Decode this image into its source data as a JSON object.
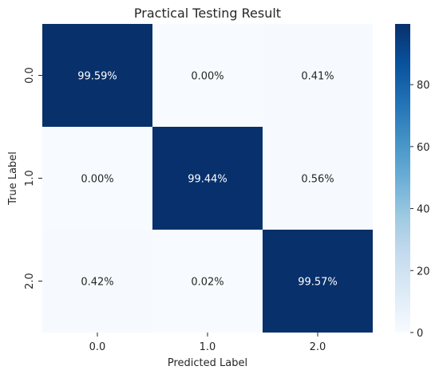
{
  "chart_data": {
    "type": "heatmap",
    "title": "Practical Testing Result",
    "xlabel": "Predicted Label",
    "ylabel": "True Label",
    "x_categories": [
      "0.0",
      "1.0",
      "2.0"
    ],
    "y_categories": [
      "0.0",
      "1.0",
      "2.0"
    ],
    "values": [
      [
        99.59,
        0.0,
        0.41
      ],
      [
        0.0,
        99.44,
        0.56
      ],
      [
        0.42,
        0.02,
        99.57
      ]
    ],
    "cell_labels": [
      [
        "99.59%",
        "0.00%",
        "0.41%"
      ],
      [
        "0.00%",
        "99.44%",
        "0.56%"
      ],
      [
        "0.42%",
        "0.02%",
        "99.57%"
      ]
    ],
    "colorbar": {
      "ticks": [
        0,
        20,
        40,
        60,
        80
      ],
      "tick_labels": [
        "0",
        "20",
        "40",
        "60",
        "80"
      ],
      "range": [
        0,
        99.59
      ]
    },
    "colors": {
      "low": "#f7fbff",
      "high": "#08306b"
    }
  }
}
